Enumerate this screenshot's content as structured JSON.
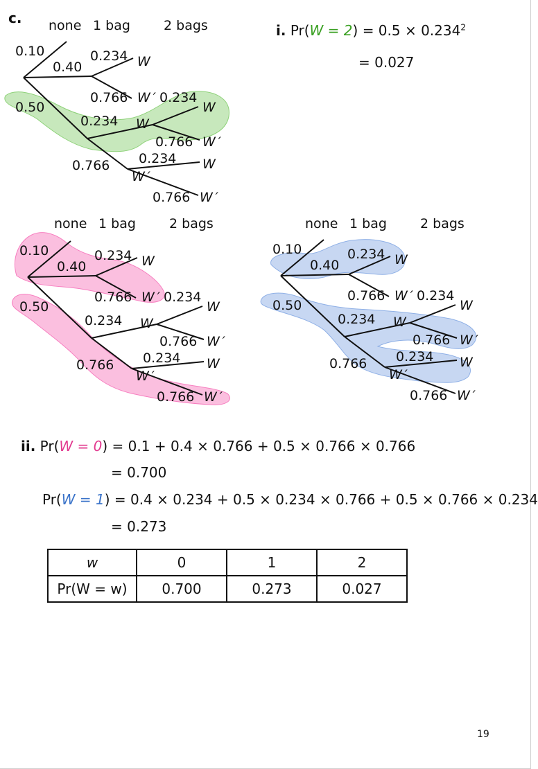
{
  "part": "c.",
  "tree": {
    "headers": [
      "none",
      "1 bag",
      "2 bags"
    ],
    "p_none": "0.10",
    "p_one": "0.40",
    "p_two": "0.50",
    "p_w": "0.234",
    "p_wp": "0.766",
    "w": "W",
    "wp": "W ′"
  },
  "highlight_colors": {
    "green": "#8fd27a",
    "pink": "#f77fc0",
    "blue": "#8fb0e6"
  },
  "part_i": {
    "label": "i.",
    "line1_pre": "Pr(",
    "line1_var": "W = 2",
    "line1_post": ") = 0.5 × 0.234",
    "line1_sup": "2",
    "line2": "= 0.027"
  },
  "part_ii": {
    "label": "ii.",
    "eq1_pre": "Pr(",
    "eq1_var": "W = 0",
    "eq1_post": ") = 0.1 + 0.4 × 0.766 + 0.5 × 0.766 × 0.766",
    "eq1_result": "= 0.700",
    "eq2_pre": "Pr(",
    "eq2_var": "W = 1",
    "eq2_post": ") = 0.4 × 0.234 + 0.5 × 0.234 × 0.766 + 0.5 × 0.766 × 0.234",
    "eq2_result": "= 0.273"
  },
  "table": {
    "header_label": "w",
    "row_label": "Pr(W = w)",
    "values_w": [
      "0",
      "1",
      "2"
    ],
    "values_p": [
      "0.700",
      "0.273",
      "0.027"
    ]
  },
  "page_number": "19"
}
